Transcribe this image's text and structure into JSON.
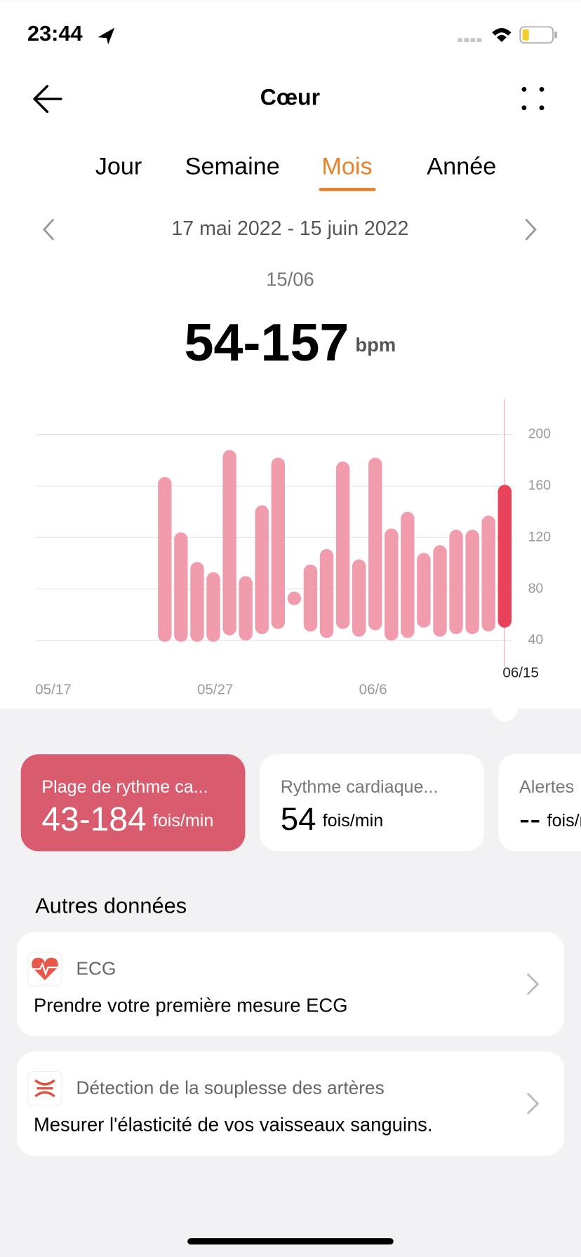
{
  "status_bar": {
    "time": "23:44"
  },
  "header": {
    "title": "Cœur"
  },
  "tabs": {
    "items": [
      "Jour",
      "Semaine",
      "Mois",
      "Année"
    ],
    "selected": 2
  },
  "period": {
    "range": "17 mai 2022 - 15 juin 2022",
    "selected_date": "15/06",
    "value": "54-157",
    "unit": "bpm"
  },
  "chart_data": {
    "type": "range_bar",
    "categories": [
      "05/17",
      null,
      null,
      null,
      null,
      null,
      null,
      null,
      null,
      null,
      "05/27",
      null,
      null,
      null,
      null,
      null,
      null,
      null,
      null,
      null,
      "06/6",
      null,
      null,
      null,
      null,
      null,
      null,
      null,
      null,
      "06/15"
    ],
    "low": [
      null,
      null,
      null,
      null,
      null,
      null,
      null,
      null,
      43,
      43,
      43,
      43,
      48,
      44,
      49,
      53,
      74,
      51,
      46,
      53,
      47,
      52,
      44,
      46,
      54,
      47,
      49,
      49,
      51,
      54
    ],
    "high": [
      null,
      null,
      null,
      null,
      null,
      null,
      null,
      null,
      163,
      120,
      97,
      89,
      184,
      86,
      141,
      178,
      74,
      95,
      107,
      175,
      99,
      178,
      123,
      136,
      104,
      110,
      122,
      122,
      133,
      157
    ],
    "color": "#f09cad",
    "highlight_color": "#e8435a",
    "highlight_index": 29,
    "ylim": [
      40,
      200
    ],
    "yticks": [
      40,
      80,
      120,
      160,
      200
    ],
    "grid": true
  },
  "cards": [
    {
      "title": "Plage de rythme ca...",
      "value": "43-184",
      "unit": "fois/min"
    },
    {
      "title": "Rythme cardiaque...",
      "value": "54",
      "unit": "fois/min"
    },
    {
      "title": "Alertes",
      "value": "--",
      "unit": "fois/min"
    }
  ],
  "other": {
    "title": "Autres données",
    "items": [
      {
        "name": "ECG",
        "description": "Prendre votre première mesure ECG"
      },
      {
        "name": "Détection de la souplesse des artères",
        "description": "Mesurer l'élasticité de vos vaisseaux sanguins."
      }
    ]
  }
}
